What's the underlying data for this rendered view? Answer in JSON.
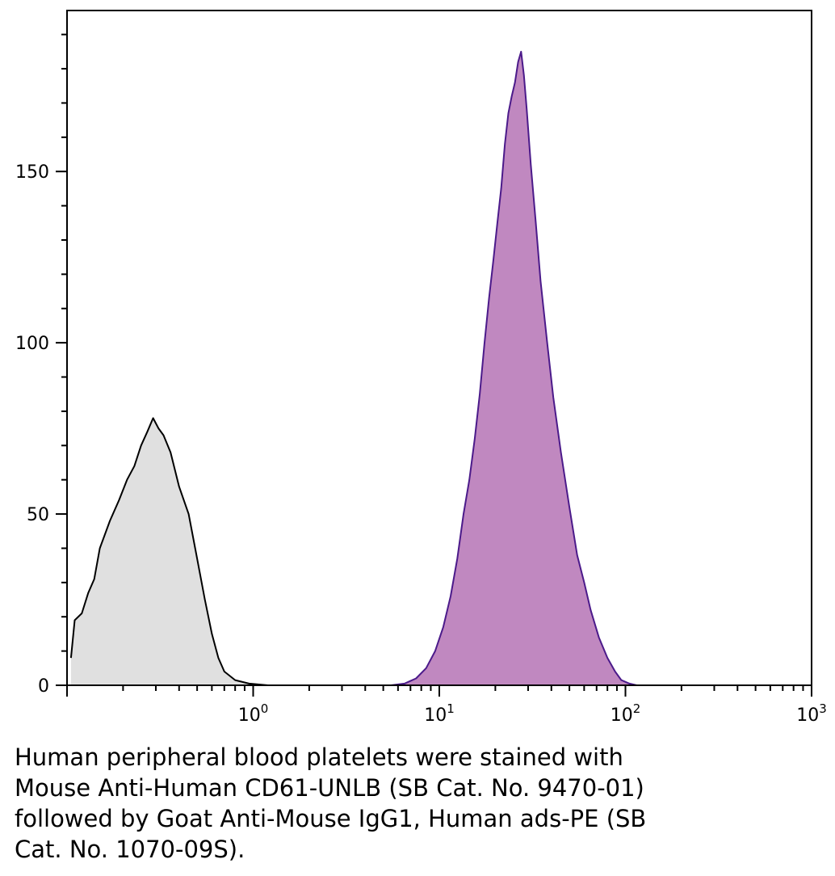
{
  "chart_data": {
    "type": "area",
    "xscale": "log",
    "xlim": [
      0.1,
      1000
    ],
    "ylim": [
      0,
      197
    ],
    "x_ticks": [
      {
        "value": 1,
        "base": "10",
        "exp": "0"
      },
      {
        "value": 10,
        "base": "10",
        "exp": "1"
      },
      {
        "value": 100,
        "base": "10",
        "exp": "2"
      },
      {
        "value": 1000,
        "base": "10",
        "exp": "3"
      }
    ],
    "y_ticks": [
      {
        "value": 0,
        "label": "0"
      },
      {
        "value": 50,
        "label": "50"
      },
      {
        "value": 100,
        "label": "100"
      },
      {
        "value": 150,
        "label": "150"
      }
    ],
    "series": [
      {
        "fill": "#e0e0e0",
        "stroke": "#000000",
        "points": [
          [
            0.105,
            8
          ],
          [
            0.11,
            19
          ],
          [
            0.12,
            21
          ],
          [
            0.13,
            27
          ],
          [
            0.14,
            31
          ],
          [
            0.15,
            40
          ],
          [
            0.17,
            48
          ],
          [
            0.19,
            54
          ],
          [
            0.21,
            60
          ],
          [
            0.23,
            64
          ],
          [
            0.25,
            70
          ],
          [
            0.27,
            74
          ],
          [
            0.29,
            78
          ],
          [
            0.31,
            75
          ],
          [
            0.33,
            73
          ],
          [
            0.36,
            68
          ],
          [
            0.4,
            58
          ],
          [
            0.45,
            50
          ],
          [
            0.5,
            37
          ],
          [
            0.55,
            25
          ],
          [
            0.6,
            15
          ],
          [
            0.65,
            8
          ],
          [
            0.7,
            4
          ],
          [
            0.8,
            1.5
          ],
          [
            0.95,
            0.5
          ],
          [
            1.2,
            0
          ]
        ]
      },
      {
        "fill": "#c088c0",
        "stroke": "#4b1a8a",
        "points": [
          [
            5.5,
            0
          ],
          [
            6.5,
            0.5
          ],
          [
            7.5,
            2
          ],
          [
            8.5,
            5
          ],
          [
            9.5,
            10
          ],
          [
            10.5,
            17
          ],
          [
            11.5,
            26
          ],
          [
            12.5,
            37
          ],
          [
            13.5,
            50
          ],
          [
            14.5,
            60
          ],
          [
            15.5,
            72
          ],
          [
            16.5,
            85
          ],
          [
            17.5,
            100
          ],
          [
            18.5,
            113
          ],
          [
            19.5,
            124
          ],
          [
            20.5,
            135
          ],
          [
            21.5,
            145
          ],
          [
            22.5,
            158
          ],
          [
            23.5,
            167
          ],
          [
            24.5,
            172
          ],
          [
            25.5,
            176
          ],
          [
            26.5,
            182
          ],
          [
            27.5,
            185
          ],
          [
            28.5,
            178
          ],
          [
            29.5,
            168
          ],
          [
            31,
            152
          ],
          [
            33,
            135
          ],
          [
            35,
            118
          ],
          [
            38,
            100
          ],
          [
            41,
            84
          ],
          [
            45,
            68
          ],
          [
            50,
            52
          ],
          [
            55,
            38
          ],
          [
            60,
            30
          ],
          [
            65,
            22
          ],
          [
            72,
            14
          ],
          [
            80,
            8
          ],
          [
            88,
            4
          ],
          [
            95,
            1.5
          ],
          [
            105,
            0.5
          ],
          [
            115,
            0
          ]
        ]
      }
    ]
  },
  "caption": [
    "Human peripheral blood platelets were stained with",
    "Mouse Anti-Human CD61-UNLB (SB Cat. No. 9470-01)",
    "followed by Goat Anti-Mouse IgG1, Human ads-PE (SB",
    "Cat. No. 1070-09S)."
  ]
}
